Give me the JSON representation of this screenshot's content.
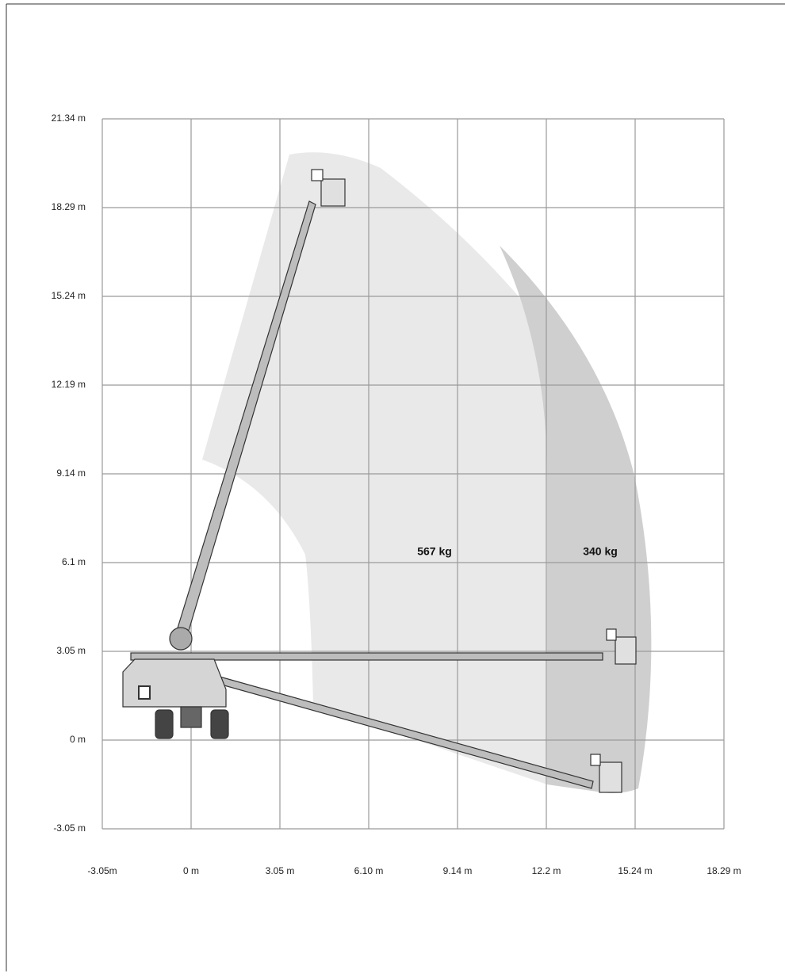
{
  "diagram": {
    "y_axis": {
      "labels": [
        "21.34 m",
        "18.29 m",
        "15.24 m",
        "12.19 m",
        "9.14 m",
        "6.1 m",
        "3.05 m",
        "0 m",
        "-3.05 m"
      ]
    },
    "x_axis": {
      "labels": [
        "-3.05m",
        "0 m",
        "3.05 m",
        "6.10 m",
        "9.14 m",
        "12.2 m",
        "15.24 m",
        "18.29 m"
      ]
    },
    "zones": [
      {
        "label": "567 kg"
      },
      {
        "label": "340 kg"
      }
    ]
  }
}
